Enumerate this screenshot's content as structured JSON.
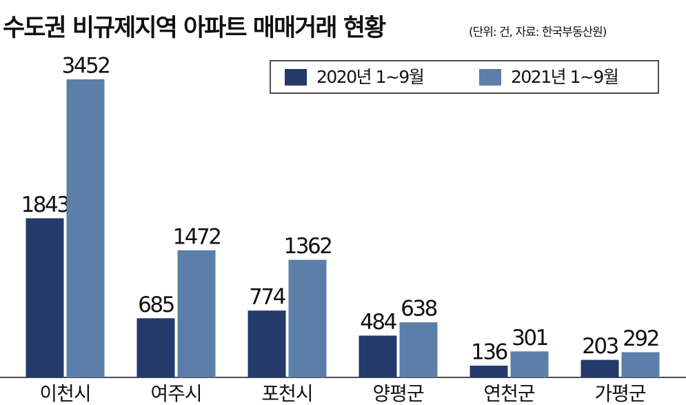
{
  "chart_data": {
    "type": "bar",
    "title": "수도권 비규제지역 아파트 매매거래 현황",
    "subtitle": "(단위: 건, 자료: 한국부동산원)",
    "categories": [
      "이천시",
      "여주시",
      "포천시",
      "양평군",
      "연천군",
      "가평군"
    ],
    "series": [
      {
        "name": "2020년 1~9월",
        "color": "#243a6b",
        "values": [
          1843,
          685,
          774,
          484,
          136,
          203
        ]
      },
      {
        "name": "2021년 1~9월",
        "color": "#5b7fa8",
        "values": [
          3452,
          1472,
          1362,
          638,
          301,
          292
        ]
      }
    ]
  }
}
